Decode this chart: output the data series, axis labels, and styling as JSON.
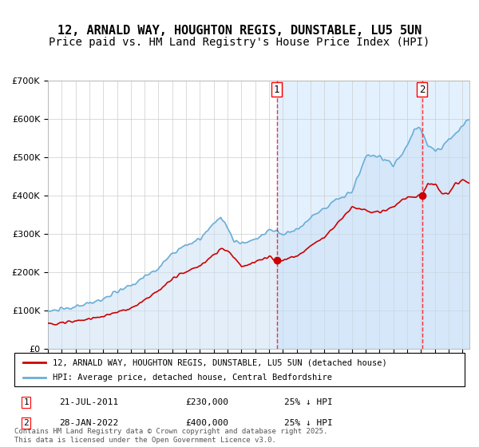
{
  "title_line1": "12, ARNALD WAY, HOUGHTON REGIS, DUNSTABLE, LU5 5UN",
  "title_line2": "Price paid vs. HM Land Registry's House Price Index (HPI)",
  "legend_line1": "12, ARNALD WAY, HOUGHTON REGIS, DUNSTABLE, LU5 5UN (detached house)",
  "legend_line2": "HPI: Average price, detached house, Central Bedfordshire",
  "footnote": "Contains HM Land Registry data © Crown copyright and database right 2025.\nThis data is licensed under the Open Government Licence v3.0.",
  "marker1_date": "21-JUL-2011",
  "marker1_price": "£230,000",
  "marker1_text": "25% ↓ HPI",
  "marker1_x": 2011.55,
  "marker2_date": "28-JAN-2022",
  "marker2_price": "£400,000",
  "marker2_text": "25% ↓ HPI",
  "marker2_x": 2022.07,
  "xmin": 1995,
  "xmax": 2025.5,
  "ymin": 0,
  "ymax": 700000,
  "hpi_color": "#6baed6",
  "price_color": "#cc0000",
  "bg_color": "#ffffff",
  "plot_bg": "#f0f4ff",
  "shaded_region_color": "#ddeeff",
  "grid_color": "#cccccc",
  "title_fontsize": 11,
  "subtitle_fontsize": 10
}
